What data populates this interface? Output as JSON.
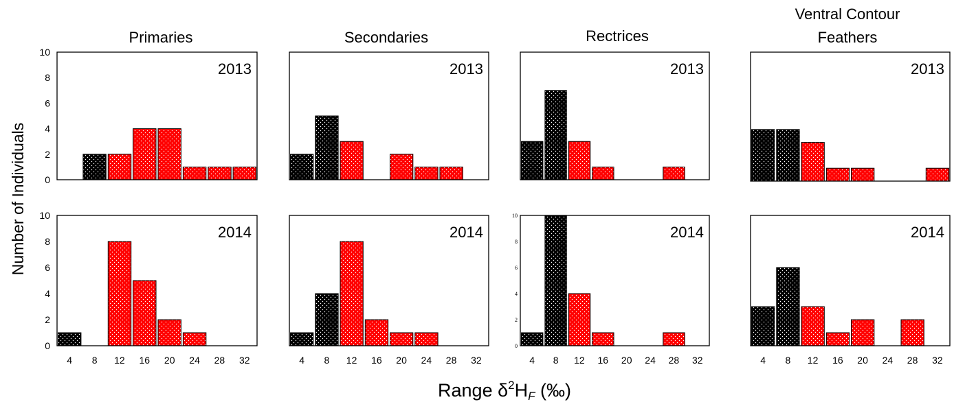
{
  "figure": {
    "ylabel": "Number of Individuals",
    "xlabel": "Range δ²H",
    "xlabel_parts": {
      "pre": "Range δ",
      "sup": "2",
      "mid": "H",
      "sub": "F",
      "post": " (‰)"
    },
    "colors": {
      "black_bar": "#000000",
      "red_bar": "#ff0000",
      "frame": "#000000"
    }
  },
  "chart_data": [
    {
      "type": "bar",
      "column_title": "Primaries",
      "year_label": "2013",
      "categories": [
        "4",
        "8",
        "12",
        "16",
        "20",
        "24",
        "28",
        "32"
      ],
      "values": [
        0,
        2,
        2,
        4,
        4,
        1,
        1,
        1
      ],
      "bar_colors": [
        "black",
        "black",
        "red",
        "red",
        "red",
        "red",
        "red",
        "red"
      ],
      "ylim": [
        0,
        10
      ],
      "yticks": [
        "0",
        "2",
        "4",
        "6",
        "8",
        "10"
      ],
      "show_xticks": false
    },
    {
      "type": "bar",
      "column_title": "Secondaries",
      "year_label": "2013",
      "categories": [
        "4",
        "8",
        "12",
        "16",
        "20",
        "24",
        "28",
        "32"
      ],
      "values": [
        2,
        5,
        3,
        0,
        2,
        1,
        1,
        0
      ],
      "bar_colors": [
        "black",
        "black",
        "red",
        "red",
        "red",
        "red",
        "red",
        "red"
      ],
      "ylim": [
        0,
        10
      ],
      "yticks": [],
      "show_xticks": false
    },
    {
      "type": "bar",
      "column_title": "Rectrices",
      "year_label": "2013",
      "categories": [
        "4",
        "8",
        "12",
        "16",
        "20",
        "24",
        "28",
        "32"
      ],
      "values": [
        3,
        7,
        3,
        1,
        0,
        0,
        1,
        0
      ],
      "bar_colors": [
        "black",
        "black",
        "red",
        "red",
        "red",
        "red",
        "red",
        "red"
      ],
      "ylim": [
        0,
        10
      ],
      "yticks": [],
      "show_xticks": false
    },
    {
      "type": "bar",
      "column_title": "Ventral Contour Feathers",
      "year_label": "2013",
      "categories": [
        "4",
        "8",
        "12",
        "16",
        "20",
        "24",
        "28",
        "32"
      ],
      "values": [
        4,
        4,
        3,
        1,
        1,
        0,
        0,
        1
      ],
      "bar_colors": [
        "black",
        "black",
        "red",
        "red",
        "red",
        "red",
        "red",
        "red"
      ],
      "ylim": [
        0,
        10
      ],
      "yticks": [],
      "show_xticks": false
    },
    {
      "type": "bar",
      "column_title": "",
      "year_label": "2014",
      "categories": [
        "4",
        "8",
        "12",
        "16",
        "20",
        "24",
        "28",
        "32"
      ],
      "values": [
        1,
        0,
        8,
        5,
        2,
        1,
        0,
        0
      ],
      "bar_colors": [
        "black",
        "black",
        "red",
        "red",
        "red",
        "red",
        "red",
        "red"
      ],
      "ylim": [
        0,
        10
      ],
      "yticks": [
        "0",
        "2",
        "4",
        "6",
        "8",
        "10"
      ],
      "show_xticks": true
    },
    {
      "type": "bar",
      "column_title": "",
      "year_label": "2014",
      "categories": [
        "4",
        "8",
        "12",
        "16",
        "20",
        "24",
        "28",
        "32"
      ],
      "values": [
        1,
        4,
        8,
        2,
        1,
        1,
        0,
        0
      ],
      "bar_colors": [
        "black",
        "black",
        "red",
        "red",
        "red",
        "red",
        "red",
        "red"
      ],
      "ylim": [
        0,
        10
      ],
      "yticks": [],
      "show_xticks": true
    },
    {
      "type": "bar",
      "column_title": "",
      "year_label": "2014",
      "categories": [
        "4",
        "8",
        "12",
        "16",
        "20",
        "24",
        "28",
        "32"
      ],
      "values": [
        1,
        10,
        4,
        1,
        0,
        0,
        1,
        0
      ],
      "bar_colors": [
        "black",
        "black",
        "red",
        "red",
        "red",
        "red",
        "red",
        "red"
      ],
      "ylim": [
        0,
        10
      ],
      "yticks": [
        "0",
        "2",
        "4",
        "6",
        "8",
        "10"
      ],
      "show_xticks": true
    },
    {
      "type": "bar",
      "column_title": "",
      "year_label": "2014",
      "categories": [
        "4",
        "8",
        "12",
        "16",
        "20",
        "24",
        "28",
        "32"
      ],
      "values": [
        3,
        6,
        3,
        1,
        2,
        0,
        2,
        0
      ],
      "bar_colors": [
        "black",
        "black",
        "red",
        "red",
        "red",
        "red",
        "red",
        "red"
      ],
      "ylim": [
        0,
        10
      ],
      "yticks": [],
      "show_xticks": true
    }
  ]
}
